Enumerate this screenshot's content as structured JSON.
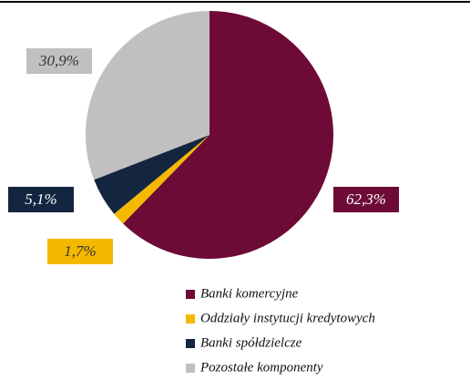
{
  "chart_data": {
    "type": "pie",
    "categories": [
      "Banki komercyjne",
      "Oddziały instytucji kredytowych",
      "Banki spółdzielcze",
      "Pozostałe komponenty"
    ],
    "values": [
      62.3,
      1.7,
      5.1,
      30.9
    ],
    "value_labels": [
      "62,3%",
      "1,7%",
      "5,1%",
      "30,9%"
    ],
    "colors": [
      "#6d0a35",
      "#f5b800",
      "#14253f",
      "#c0c0c0"
    ],
    "legend": "bottom"
  }
}
